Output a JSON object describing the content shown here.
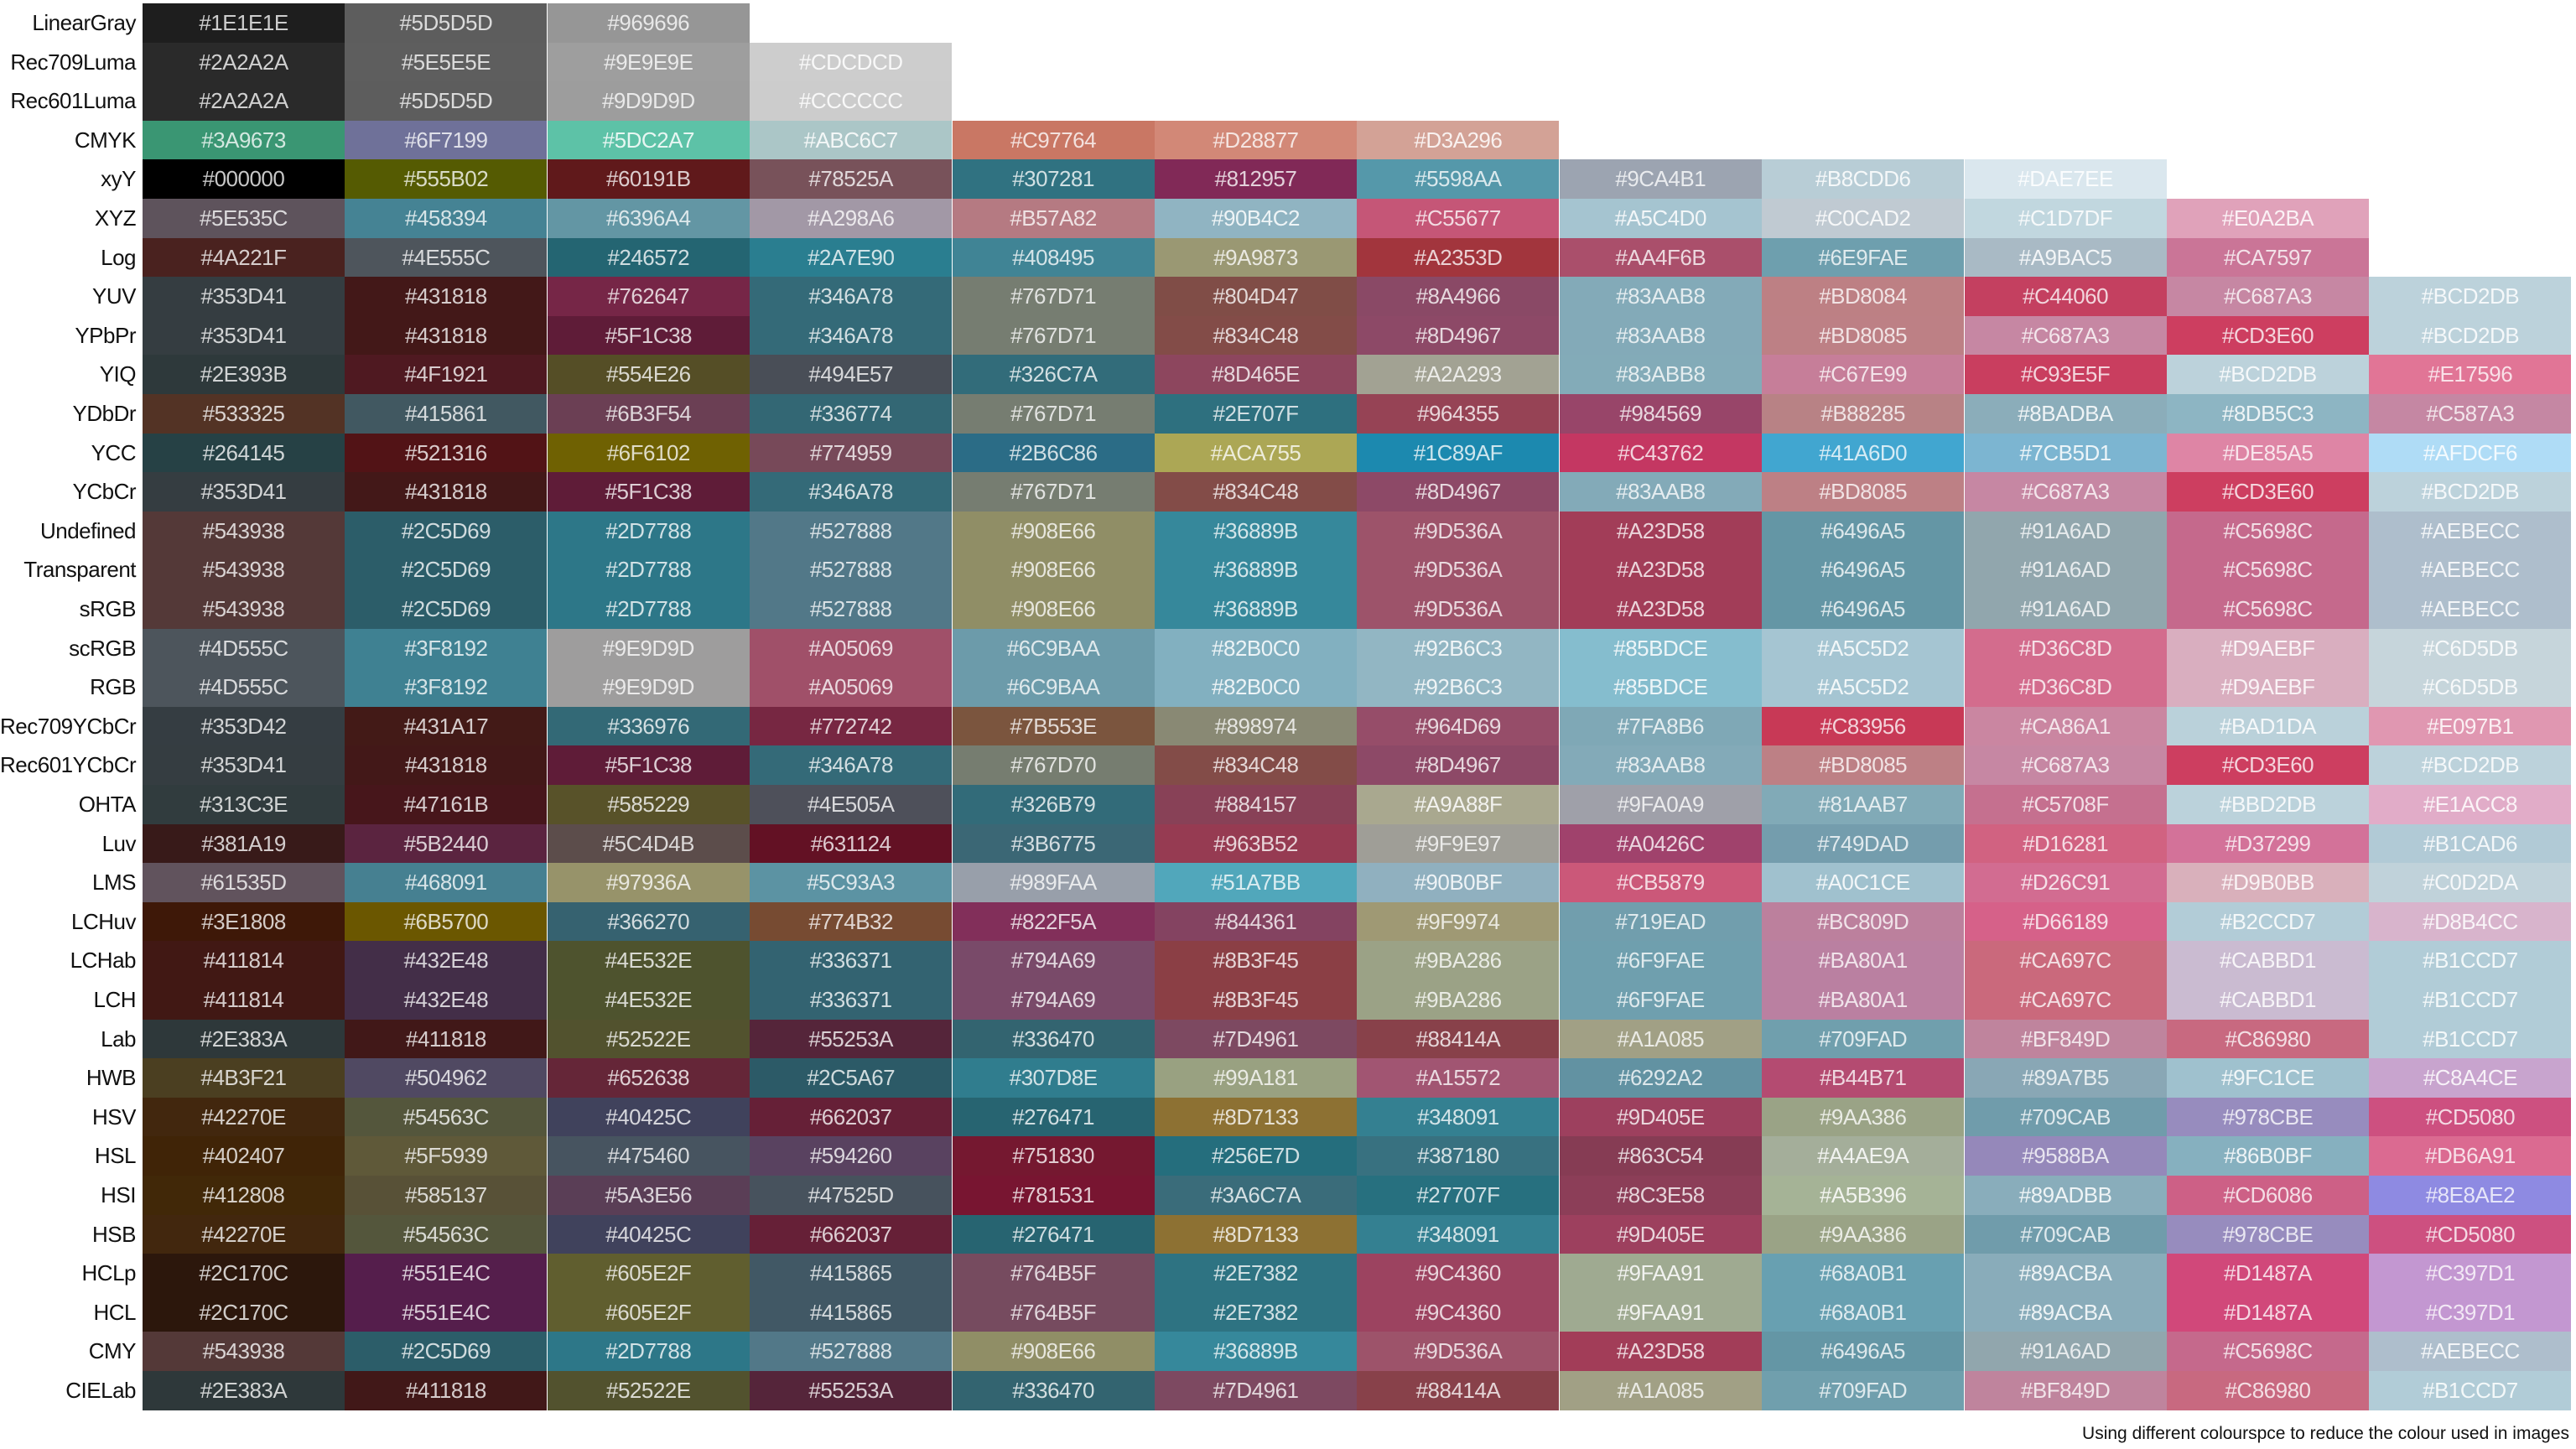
{
  "rows": [
    {
      "label": "LinearGray",
      "colors": [
        "#1E1E1E",
        "#5D5D5D",
        "#969696"
      ]
    },
    {
      "label": "Rec709Luma",
      "colors": [
        "#2A2A2A",
        "#5E5E5E",
        "#9E9E9E",
        "#CDCDCD"
      ]
    },
    {
      "label": "Rec601Luma",
      "colors": [
        "#2A2A2A",
        "#5D5D5D",
        "#9D9D9D",
        "#CCCCCC"
      ]
    },
    {
      "label": "CMYK",
      "colors": [
        "#3A9673",
        "#6F7199",
        "#5DC2A7",
        "#ABC6C7",
        "#C97764",
        "#D28877",
        "#D3A296"
      ]
    },
    {
      "label": "xyY",
      "colors": [
        "#000000",
        "#555B02",
        "#60191B",
        "#78525A",
        "#307281",
        "#812957",
        "#5598AA",
        "#9CA4B1",
        "#B8CDD6",
        "#DAE7EE"
      ]
    },
    {
      "label": "XYZ",
      "colors": [
        "#5E535C",
        "#458394",
        "#6396A4",
        "#A298A6",
        "#B57A82",
        "#90B4C2",
        "#C55677",
        "#A5C4D0",
        "#C0CAD2",
        "#C1D7DF",
        "#E0A2BA"
      ]
    },
    {
      "label": "Log",
      "colors": [
        "#4A221F",
        "#4E555C",
        "#246572",
        "#2A7E90",
        "#408495",
        "#9A9873",
        "#A2353D",
        "#AA4F6B",
        "#6E9FAE",
        "#A9BAC5",
        "#CA7597"
      ]
    },
    {
      "label": "YUV",
      "colors": [
        "#353D41",
        "#431818",
        "#762647",
        "#346A78",
        "#767D71",
        "#804D47",
        "#8A4966",
        "#83AAB8",
        "#BD8084",
        "#C44060",
        "#C687A3",
        "#BCD2DB"
      ]
    },
    {
      "label": "YPbPr",
      "colors": [
        "#353D41",
        "#431818",
        "#5F1C38",
        "#346A78",
        "#767D71",
        "#834C48",
        "#8D4967",
        "#83AAB8",
        "#BD8085",
        "#C687A3",
        "#CD3E60",
        "#BCD2DB"
      ]
    },
    {
      "label": "YIQ",
      "colors": [
        "#2E393B",
        "#4F1921",
        "#554E26",
        "#494E57",
        "#326C7A",
        "#8D465E",
        "#A2A293",
        "#83ABB8",
        "#C67E99",
        "#C93E5F",
        "#BCD2DB",
        "#E17596"
      ]
    },
    {
      "label": "YDbDr",
      "colors": [
        "#533325",
        "#415861",
        "#6B3F54",
        "#336774",
        "#767D71",
        "#2E707F",
        "#964355",
        "#984569",
        "#B88285",
        "#8BADBA",
        "#8DB5C3",
        "#C587A3"
      ]
    },
    {
      "label": "YCC",
      "colors": [
        "#264145",
        "#521316",
        "#6F6102",
        "#774959",
        "#2B6C86",
        "#ACA755",
        "#1C89AF",
        "#C43762",
        "#41A6D0",
        "#7CB5D1",
        "#DE85A5",
        "#AFDCF6"
      ]
    },
    {
      "label": "YCbCr",
      "colors": [
        "#353D41",
        "#431818",
        "#5F1C38",
        "#346A78",
        "#767D71",
        "#834C48",
        "#8D4967",
        "#83AAB8",
        "#BD8085",
        "#C687A3",
        "#CD3E60",
        "#BCD2DB"
      ]
    },
    {
      "label": "Undefined",
      "colors": [
        "#543938",
        "#2C5D69",
        "#2D7788",
        "#527888",
        "#908E66",
        "#36889B",
        "#9D536A",
        "#A23D58",
        "#6496A5",
        "#91A6AD",
        "#C5698C",
        "#AEBECC"
      ]
    },
    {
      "label": "Transparent",
      "colors": [
        "#543938",
        "#2C5D69",
        "#2D7788",
        "#527888",
        "#908E66",
        "#36889B",
        "#9D536A",
        "#A23D58",
        "#6496A5",
        "#91A6AD",
        "#C5698C",
        "#AEBECC"
      ]
    },
    {
      "label": "sRGB",
      "colors": [
        "#543938",
        "#2C5D69",
        "#2D7788",
        "#527888",
        "#908E66",
        "#36889B",
        "#9D536A",
        "#A23D58",
        "#6496A5",
        "#91A6AD",
        "#C5698C",
        "#AEBECC"
      ]
    },
    {
      "label": "scRGB",
      "colors": [
        "#4D555C",
        "#3F8192",
        "#9E9D9D",
        "#A05069",
        "#6C9BAA",
        "#82B0C0",
        "#92B6C3",
        "#85BDCE",
        "#A5C5D2",
        "#D36C8D",
        "#D9AEBF",
        "#C6D5DB"
      ]
    },
    {
      "label": "RGB",
      "colors": [
        "#4D555C",
        "#3F8192",
        "#9E9D9D",
        "#A05069",
        "#6C9BAA",
        "#82B0C0",
        "#92B6C3",
        "#85BDCE",
        "#A5C5D2",
        "#D36C8D",
        "#D9AEBF",
        "#C6D5DB"
      ]
    },
    {
      "label": "Rec709YCbCr",
      "colors": [
        "#353D42",
        "#431A17",
        "#336976",
        "#772742",
        "#7B553E",
        "#898974",
        "#964D69",
        "#7FA8B6",
        "#C83956",
        "#CA86A1",
        "#BAD1DA",
        "#E097B1"
      ]
    },
    {
      "label": "Rec601YCbCr",
      "colors": [
        "#353D41",
        "#431818",
        "#5F1C38",
        "#346A78",
        "#767D70",
        "#834C48",
        "#8D4967",
        "#83AAB8",
        "#BD8085",
        "#C687A3",
        "#CD3E60",
        "#BCD2DB"
      ]
    },
    {
      "label": "OHTA",
      "colors": [
        "#313C3E",
        "#47161B",
        "#585229",
        "#4E505A",
        "#326B79",
        "#884157",
        "#A9A88F",
        "#9FA0A9",
        "#81AAB7",
        "#C5708F",
        "#BBD2DB",
        "#E1ACC8"
      ]
    },
    {
      "label": "Luv",
      "colors": [
        "#381A19",
        "#5B2440",
        "#5C4D4B",
        "#631124",
        "#3B6775",
        "#963B52",
        "#9F9E97",
        "#A0426C",
        "#749DAD",
        "#D16281",
        "#D37299",
        "#B1CAD6"
      ]
    },
    {
      "label": "LMS",
      "colors": [
        "#61535D",
        "#468091",
        "#97936A",
        "#5C93A3",
        "#989FAA",
        "#51A7BB",
        "#90B0BF",
        "#CB5879",
        "#A0C1CE",
        "#D26C91",
        "#D9B0BB",
        "#C0D2DA"
      ]
    },
    {
      "label": "LCHuv",
      "colors": [
        "#3E1808",
        "#6B5700",
        "#366270",
        "#774B32",
        "#822F5A",
        "#844361",
        "#9F9974",
        "#719EAD",
        "#BC809D",
        "#D66189",
        "#B2CCD7",
        "#D8B4CC"
      ]
    },
    {
      "label": "LCHab",
      "colors": [
        "#411814",
        "#432E48",
        "#4E532E",
        "#336371",
        "#794A69",
        "#8B3F45",
        "#9BA286",
        "#6F9FAE",
        "#BA80A1",
        "#CA697C",
        "#CABBD1",
        "#B1CCD7"
      ]
    },
    {
      "label": "LCH",
      "colors": [
        "#411814",
        "#432E48",
        "#4E532E",
        "#336371",
        "#794A69",
        "#8B3F45",
        "#9BA286",
        "#6F9FAE",
        "#BA80A1",
        "#CA697C",
        "#CABBD1",
        "#B1CCD7"
      ]
    },
    {
      "label": "Lab",
      "colors": [
        "#2E383A",
        "#411818",
        "#52522E",
        "#55253A",
        "#336470",
        "#7D4961",
        "#88414A",
        "#A1A085",
        "#709FAD",
        "#BF849D",
        "#C86980",
        "#B1CCD7"
      ]
    },
    {
      "label": "HWB",
      "colors": [
        "#4B3F21",
        "#504962",
        "#652638",
        "#2C5A67",
        "#307D8E",
        "#99A181",
        "#A15572",
        "#6292A2",
        "#B44B71",
        "#89A7B5",
        "#9FC1CE",
        "#C8A4CE"
      ]
    },
    {
      "label": "HSV",
      "colors": [
        "#42270E",
        "#54563C",
        "#40425C",
        "#662037",
        "#276471",
        "#8D7133",
        "#348091",
        "#9D405E",
        "#9AA386",
        "#709CAB",
        "#978CBE",
        "#CD5080"
      ]
    },
    {
      "label": "HSL",
      "colors": [
        "#402407",
        "#5F5939",
        "#475460",
        "#594260",
        "#751830",
        "#256E7D",
        "#387180",
        "#863C54",
        "#A4AE9A",
        "#9588BA",
        "#86B0BF",
        "#DB6A91"
      ]
    },
    {
      "label": "HSI",
      "colors": [
        "#412808",
        "#585137",
        "#5A3E56",
        "#47525D",
        "#781531",
        "#3A6C7A",
        "#27707F",
        "#8C3E58",
        "#A5B396",
        "#89ADBB",
        "#CD6086",
        "#8E8AE2"
      ]
    },
    {
      "label": "HSB",
      "colors": [
        "#42270E",
        "#54563C",
        "#40425C",
        "#662037",
        "#276471",
        "#8D7133",
        "#348091",
        "#9D405E",
        "#9AA386",
        "#709CAB",
        "#978CBE",
        "#CD5080"
      ]
    },
    {
      "label": "HCLp",
      "colors": [
        "#2C170C",
        "#551E4C",
        "#605E2F",
        "#415865",
        "#764B5F",
        "#2E7382",
        "#9C4360",
        "#9FAA91",
        "#68A0B1",
        "#89ACBA",
        "#D1487A",
        "#C397D1"
      ]
    },
    {
      "label": "HCL",
      "colors": [
        "#2C170C",
        "#551E4C",
        "#605E2F",
        "#415865",
        "#764B5F",
        "#2E7382",
        "#9C4360",
        "#9FAA91",
        "#68A0B1",
        "#89ACBA",
        "#D1487A",
        "#C397D1"
      ]
    },
    {
      "label": "CMY",
      "colors": [
        "#543938",
        "#2C5D69",
        "#2D7788",
        "#527888",
        "#908E66",
        "#36889B",
        "#9D536A",
        "#A23D58",
        "#6496A5",
        "#91A6AD",
        "#C5698C",
        "#AEBECC"
      ]
    },
    {
      "label": "CIELab",
      "colors": [
        "#2E383A",
        "#411818",
        "#52522E",
        "#55253A",
        "#336470",
        "#7D4961",
        "#88414A",
        "#A1A085",
        "#709FAD",
        "#BF849D",
        "#C86980",
        "#B1CCD7"
      ]
    }
  ],
  "caption": "Using different colourspce to reduce the colour used in images"
}
